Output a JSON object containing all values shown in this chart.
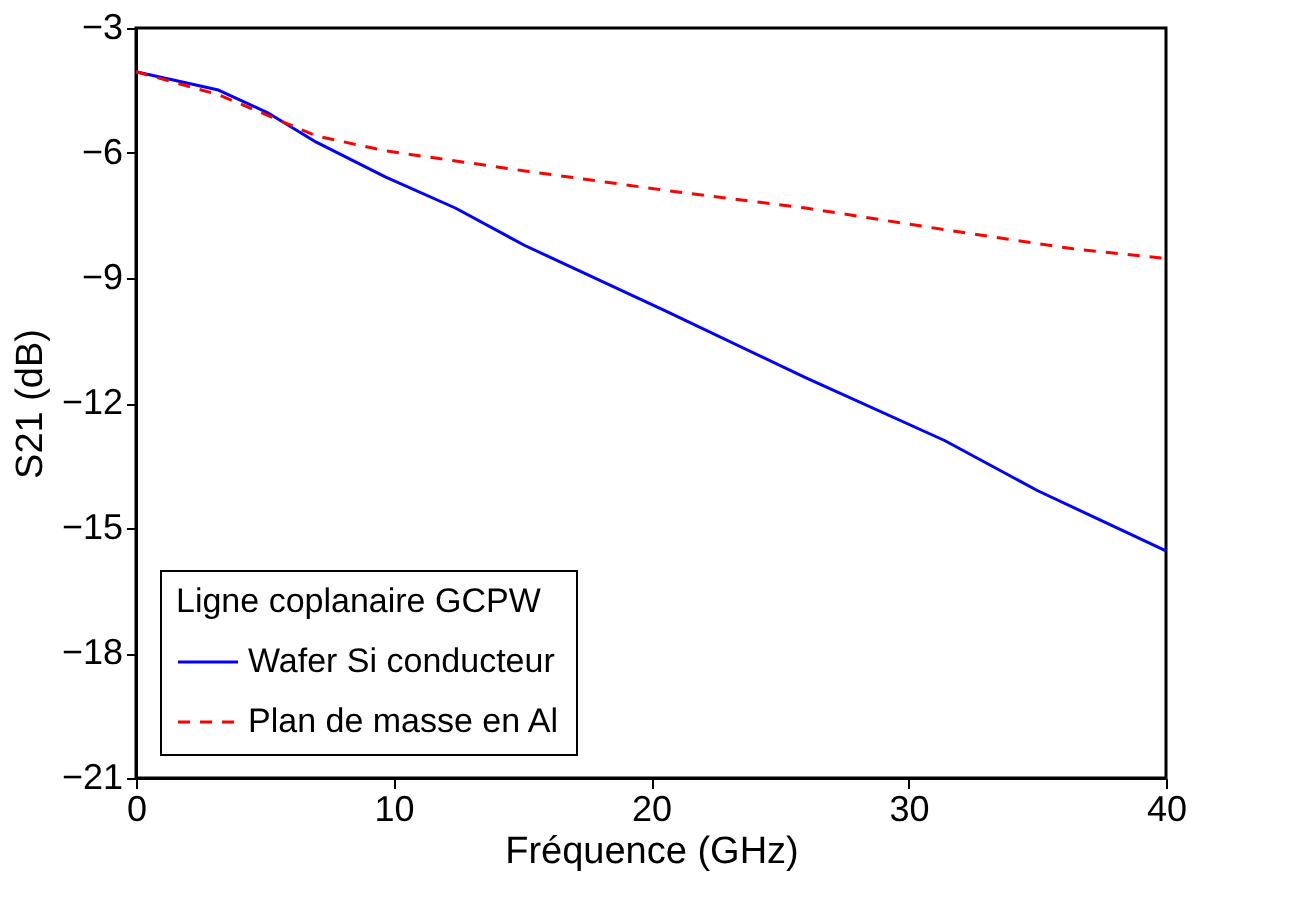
{
  "chart_data": {
    "type": "line",
    "xlabel": "Fréquence (GHz)",
    "ylabel": "S21 (dB)",
    "legend_title": "Ligne coplanaire GCPW",
    "xlim": [
      0,
      40
    ],
    "xticks": [
      0,
      10,
      20,
      30,
      40
    ],
    "ylim": [
      -21,
      -3
    ],
    "yticks": [
      -21,
      -18,
      -15,
      -12,
      -9,
      -6,
      -3
    ],
    "grid": false,
    "legend": "bottom left",
    "series": [
      {
        "name": "Wafer Si conducteur",
        "color": "#0000ff",
        "line_style": "solid",
        "x": [
          0,
          3.2,
          5.1,
          7.0,
          9.7,
          12.4,
          15.1,
          20.6,
          26,
          31.4,
          35,
          40
        ],
        "values": [
          -4.05,
          -4.49,
          -5.03,
          -5.74,
          -6.58,
          -7.32,
          -8.22,
          -9.8,
          -11.39,
          -12.9,
          -14.1,
          -15.55
        ]
      },
      {
        "name": "Plan de masse en Al",
        "color": "#ff0000",
        "line_style": "dashed",
        "x": [
          0,
          3.2,
          7.0,
          9.7,
          15.1,
          20.6,
          26,
          31.4,
          36.4,
          40
        ],
        "values": [
          -4.05,
          -4.6,
          -5.59,
          -5.95,
          -6.43,
          -6.9,
          -7.32,
          -7.84,
          -8.3,
          -8.53
        ]
      }
    ]
  }
}
